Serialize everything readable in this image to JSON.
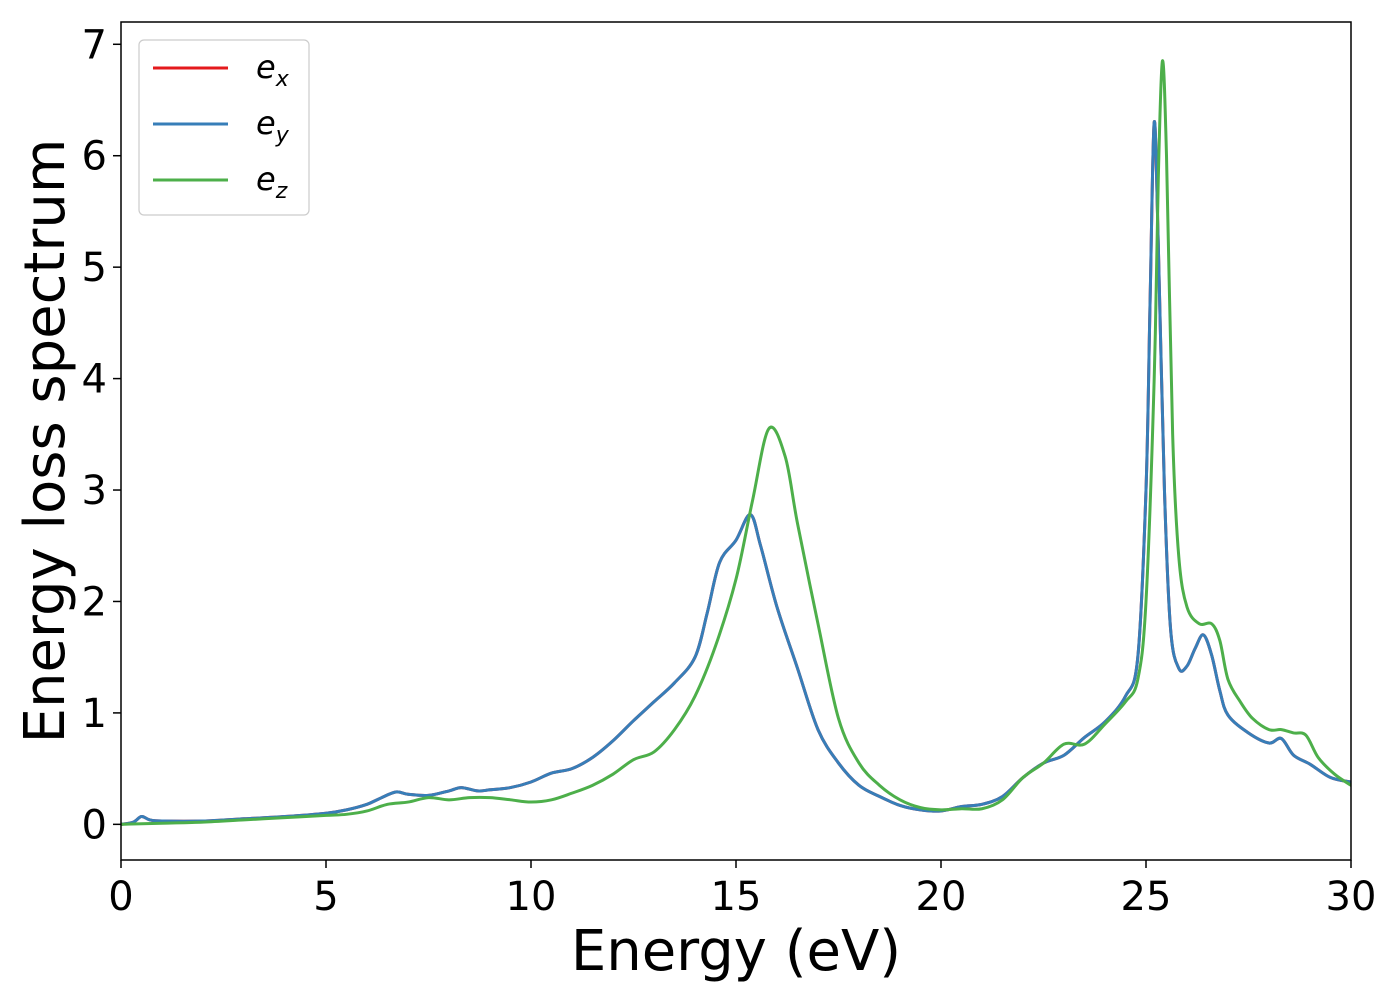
{
  "chart_data": {
    "type": "line",
    "title": "",
    "xlabel": "Energy (eV)",
    "ylabel": "Energy loss spectrum",
    "xlim": [
      0,
      30
    ],
    "ylim": [
      -0.32,
      7.2
    ],
    "xticks": [
      0,
      5,
      10,
      15,
      20,
      25,
      30
    ],
    "yticks": [
      0,
      1,
      2,
      3,
      4,
      5,
      6,
      7
    ],
    "grid": false,
    "legend_position": "top-left",
    "series": [
      {
        "name": "e_x",
        "label_base": "e",
        "label_sub": "x",
        "color": "#e41a1c",
        "x": [
          0,
          0.3,
          0.5,
          0.7,
          1,
          2,
          3,
          4,
          5,
          5.5,
          6,
          6.3,
          6.7,
          7,
          7.5,
          8,
          8.3,
          8.7,
          9,
          9.5,
          10,
          10.5,
          11,
          11.5,
          12,
          12.5,
          13,
          13.5,
          14,
          14.3,
          14.6,
          15,
          15.35,
          15.6,
          16,
          16.5,
          17,
          17.5,
          18,
          18.5,
          19,
          19.5,
          20,
          20.5,
          21,
          21.5,
          22,
          22.5,
          23,
          23.5,
          24,
          24.5,
          24.8,
          25,
          25.1,
          25.2,
          25.3,
          25.45,
          25.6,
          25.8,
          26,
          26.2,
          26.4,
          26.6,
          26.8,
          27,
          27.5,
          28,
          28.3,
          28.6,
          29,
          29.5,
          30
        ],
        "values": [
          0,
          0.02,
          0.07,
          0.04,
          0.03,
          0.03,
          0.05,
          0.07,
          0.1,
          0.13,
          0.18,
          0.23,
          0.29,
          0.27,
          0.26,
          0.3,
          0.33,
          0.3,
          0.31,
          0.33,
          0.38,
          0.46,
          0.5,
          0.6,
          0.75,
          0.93,
          1.1,
          1.27,
          1.5,
          1.9,
          2.35,
          2.55,
          2.78,
          2.5,
          1.95,
          1.4,
          0.85,
          0.55,
          0.35,
          0.25,
          0.17,
          0.13,
          0.12,
          0.16,
          0.18,
          0.25,
          0.42,
          0.55,
          0.62,
          0.78,
          0.92,
          1.15,
          1.5,
          3.0,
          4.7,
          6.3,
          5.2,
          3.0,
          1.75,
          1.4,
          1.42,
          1.58,
          1.7,
          1.52,
          1.2,
          0.98,
          0.82,
          0.73,
          0.77,
          0.62,
          0.54,
          0.42,
          0.38
        ]
      },
      {
        "name": "e_y",
        "label_base": "e",
        "label_sub": "y",
        "color": "#377eb8",
        "x": [
          0,
          0.3,
          0.5,
          0.7,
          1,
          2,
          3,
          4,
          5,
          5.5,
          6,
          6.3,
          6.7,
          7,
          7.5,
          8,
          8.3,
          8.7,
          9,
          9.5,
          10,
          10.5,
          11,
          11.5,
          12,
          12.5,
          13,
          13.5,
          14,
          14.3,
          14.6,
          15,
          15.35,
          15.6,
          16,
          16.5,
          17,
          17.5,
          18,
          18.5,
          19,
          19.5,
          20,
          20.5,
          21,
          21.5,
          22,
          22.5,
          23,
          23.5,
          24,
          24.5,
          24.8,
          25,
          25.1,
          25.2,
          25.3,
          25.45,
          25.6,
          25.8,
          26,
          26.2,
          26.4,
          26.6,
          26.8,
          27,
          27.5,
          28,
          28.3,
          28.6,
          29,
          29.5,
          30
        ],
        "values": [
          0,
          0.02,
          0.07,
          0.04,
          0.03,
          0.03,
          0.05,
          0.07,
          0.1,
          0.13,
          0.18,
          0.23,
          0.29,
          0.27,
          0.26,
          0.3,
          0.33,
          0.3,
          0.31,
          0.33,
          0.38,
          0.46,
          0.5,
          0.6,
          0.75,
          0.93,
          1.1,
          1.27,
          1.5,
          1.9,
          2.35,
          2.55,
          2.78,
          2.5,
          1.95,
          1.4,
          0.85,
          0.55,
          0.35,
          0.25,
          0.17,
          0.13,
          0.12,
          0.16,
          0.18,
          0.25,
          0.42,
          0.55,
          0.62,
          0.78,
          0.92,
          1.15,
          1.5,
          3.0,
          4.7,
          6.3,
          5.2,
          3.0,
          1.75,
          1.4,
          1.42,
          1.58,
          1.7,
          1.52,
          1.2,
          0.98,
          0.82,
          0.73,
          0.77,
          0.62,
          0.54,
          0.42,
          0.38
        ]
      },
      {
        "name": "e_z",
        "label_base": "e",
        "label_sub": "z",
        "color": "#4daf4a",
        "x": [
          0,
          1,
          2,
          3,
          4,
          5,
          5.5,
          6,
          6.5,
          7,
          7.5,
          8,
          8.5,
          9,
          9.5,
          10,
          10.5,
          11,
          11.5,
          12,
          12.5,
          13,
          13.5,
          14,
          14.5,
          15,
          15.4,
          15.8,
          16.2,
          16.5,
          17,
          17.5,
          18,
          18.5,
          19,
          19.5,
          20,
          20.5,
          21,
          21.5,
          22,
          22.5,
          23,
          23.5,
          24,
          24.5,
          24.8,
          25,
          25.2,
          25.3,
          25.4,
          25.5,
          25.65,
          25.8,
          26,
          26.3,
          26.6,
          26.8,
          27,
          27.3,
          27.6,
          28,
          28.3,
          28.6,
          28.9,
          29.2,
          29.6,
          30
        ],
        "values": [
          0,
          0.01,
          0.02,
          0.04,
          0.06,
          0.08,
          0.09,
          0.12,
          0.18,
          0.2,
          0.24,
          0.22,
          0.24,
          0.24,
          0.22,
          0.2,
          0.22,
          0.28,
          0.35,
          0.45,
          0.58,
          0.65,
          0.85,
          1.15,
          1.6,
          2.2,
          2.9,
          3.55,
          3.3,
          2.7,
          1.8,
          0.95,
          0.55,
          0.35,
          0.22,
          0.15,
          0.13,
          0.14,
          0.14,
          0.22,
          0.42,
          0.55,
          0.72,
          0.72,
          0.9,
          1.1,
          1.3,
          2.0,
          4.0,
          5.8,
          6.85,
          6.0,
          3.5,
          2.4,
          1.95,
          1.8,
          1.8,
          1.65,
          1.3,
          1.1,
          0.95,
          0.85,
          0.85,
          0.82,
          0.8,
          0.6,
          0.45,
          0.35
        ]
      }
    ]
  }
}
